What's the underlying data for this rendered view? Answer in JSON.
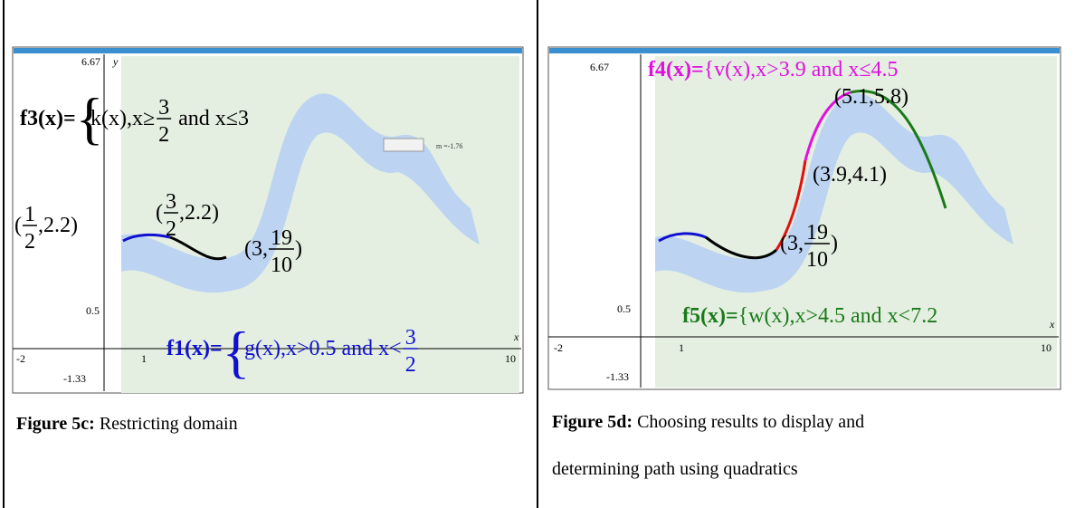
{
  "left": {
    "axes": {
      "ymax": "6.67",
      "ylabel": "y",
      "yhalf": "0.5",
      "ymin": "-1.33",
      "xmin": "-2",
      "xone": "1",
      "xmax": "10",
      "xlabel": "x"
    },
    "f3": {
      "lhs": "f3(x)=",
      "brace": "{",
      "body": "k(x),x≥",
      "num": "3",
      "den": "2",
      "tail": "and x≤3"
    },
    "f1": {
      "lhs": "f1(x)=",
      "brace": "{",
      "body": "g(x),x>0.5 and x<",
      "num": "3",
      "den": "2"
    },
    "points": [
      {
        "pre": "(",
        "num": "1",
        "den": "2",
        "post": ",2.2)"
      },
      {
        "pre": "(",
        "num": "3",
        "den": "2",
        "post": ",2.2)"
      },
      {
        "pre": "(3,",
        "num": "19",
        "den": "10",
        "post": ")"
      }
    ],
    "slider": "m =-1.76",
    "caption": {
      "label": "Figure 5c:",
      "text": "Restricting domain"
    }
  },
  "right": {
    "axes": {
      "ymax": "6.67",
      "yhalf": "0.5",
      "ymin": "-1.33",
      "xmin": "-2",
      "xone": "1",
      "xmax": "10",
      "xlabel": "x"
    },
    "f4": {
      "lhs": "f4(x)=",
      "body": "{v(x),x>3.9 and x≤4.5"
    },
    "f5": {
      "lhs": "f5(x)=",
      "body": "{w(x),x>4.5 and x<7.2"
    },
    "points": [
      {
        "text": "(5.1,5.8)"
      },
      {
        "text": "(3.9,4.1)"
      },
      {
        "pre": "(3,",
        "num": "19",
        "den": "10",
        "post": ")"
      }
    ],
    "caption": {
      "label": "Figure 5d:",
      "lines": [
        "Choosing results to display and",
        "determining path using quadratics"
      ]
    }
  }
}
